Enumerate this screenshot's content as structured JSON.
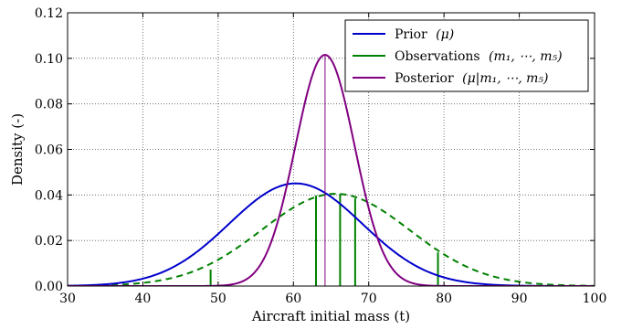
{
  "chart_data": {
    "type": "line",
    "xlabel": "Aircraft initial mass (t)",
    "ylabel": "Density (-)",
    "xlim": [
      30,
      100
    ],
    "ylim": [
      0,
      0.12
    ],
    "xticks": [
      30,
      40,
      50,
      60,
      70,
      80,
      90,
      100
    ],
    "yticks": [
      0.0,
      0.02,
      0.04,
      0.06,
      0.08,
      0.1,
      0.12
    ],
    "xtick_labels": [
      "30",
      "40",
      "50",
      "60",
      "70",
      "80",
      "90",
      "100"
    ],
    "ytick_labels": [
      "0.00",
      "0.02",
      "0.04",
      "0.06",
      "0.08",
      "0.10",
      "0.12"
    ],
    "grid": true,
    "grid_style": "dotted",
    "legend_position": "top-right",
    "series": [
      {
        "name": "Prior (μ)",
        "legend_text": "Prior",
        "legend_math": "(μ)",
        "color": "#0000cc",
        "style": "solid",
        "distribution": "normal",
        "mean": 60.3,
        "sd": 8.85
      },
      {
        "name": "Observations (m1, ⋯, m5)",
        "legend_text": "Observations",
        "legend_math": "(m₁, ⋯, m₅)",
        "color": "#008000",
        "style": "solid",
        "observations": [
          {
            "x": 49.0,
            "density": 0.0072
          },
          {
            "x": 63.0,
            "density": 0.0398
          },
          {
            "x": 66.2,
            "density": 0.0405
          },
          {
            "x": 68.2,
            "density": 0.0385
          },
          {
            "x": 79.2,
            "density": 0.0148
          }
        ]
      },
      {
        "name": "Observation density",
        "color": "#008000",
        "style": "dashed",
        "distribution": "normal",
        "mean": 65.6,
        "sd": 9.85
      },
      {
        "name": "Posterior (μ|m1, ⋯, m5)",
        "legend_text": "Posterior",
        "legend_math": "(μ|m₁, ⋯, m₅)",
        "color": "#800080",
        "style": "solid",
        "distribution": "normal",
        "mean": 64.2,
        "sd": 3.93
      },
      {
        "name": "Posterior mean",
        "color": "#800080",
        "style": "vertical-line",
        "x": 64.2,
        "density": 0.1015
      }
    ]
  }
}
